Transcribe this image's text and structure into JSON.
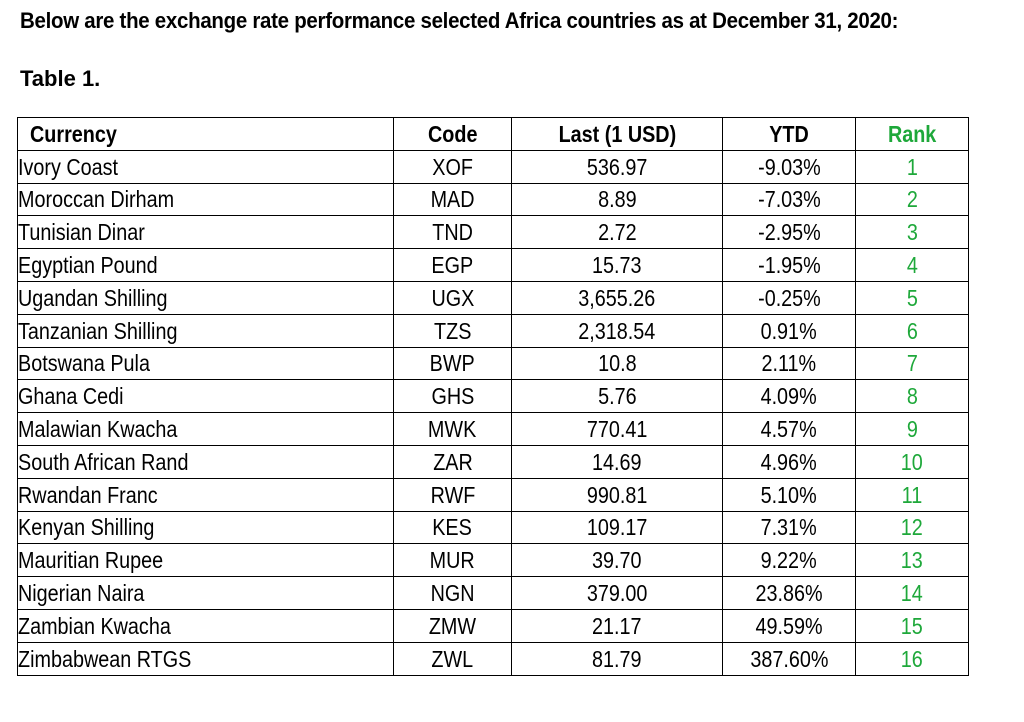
{
  "heading": "Below are the exchange rate performance selected Africa countries as at December 31, 2020:",
  "table_caption": "Table 1.",
  "accent_color": "#1ea83a",
  "columns": {
    "currency": "Currency",
    "code": "Code",
    "last": "Last (1 USD)",
    "ytd": "YTD",
    "rank": "Rank"
  },
  "rows": [
    {
      "currency": "Ivory Coast",
      "code": "XOF",
      "last": "536.97",
      "ytd": "-9.03%",
      "rank": "1"
    },
    {
      "currency": "Moroccan Dirham",
      "code": "MAD",
      "last": "8.89",
      "ytd": "-7.03%",
      "rank": "2"
    },
    {
      "currency": "Tunisian Dinar",
      "code": "TND",
      "last": "2.72",
      "ytd": "-2.95%",
      "rank": "3"
    },
    {
      "currency": "Egyptian Pound",
      "code": "EGP",
      "last": "15.73",
      "ytd": "-1.95%",
      "rank": "4"
    },
    {
      "currency": "Ugandan Shilling",
      "code": "UGX",
      "last": "3,655.26",
      "ytd": "-0.25%",
      "rank": "5"
    },
    {
      "currency": "Tanzanian Shilling",
      "code": "TZS",
      "last": "2,318.54",
      "ytd": "0.91%",
      "rank": "6"
    },
    {
      "currency": "Botswana Pula",
      "code": "BWP",
      "last": "10.8",
      "ytd": "2.11%",
      "rank": "7"
    },
    {
      "currency": "Ghana Cedi",
      "code": "GHS",
      "last": "5.76",
      "ytd": "4.09%",
      "rank": "8"
    },
    {
      "currency": "Malawian Kwacha",
      "code": "MWK",
      "last": "770.41",
      "ytd": "4.57%",
      "rank": "9"
    },
    {
      "currency": "South African Rand",
      "code": "ZAR",
      "last": "14.69",
      "ytd": "4.96%",
      "rank": "10"
    },
    {
      "currency": "Rwandan Franc",
      "code": "RWF",
      "last": "990.81",
      "ytd": "5.10%",
      "rank": "11"
    },
    {
      "currency": "Kenyan Shilling",
      "code": "KES",
      "last": "109.17",
      "ytd": "7.31%",
      "rank": "12"
    },
    {
      "currency": "Mauritian Rupee",
      "code": "MUR",
      "last": "39.70",
      "ytd": "9.22%",
      "rank": "13"
    },
    {
      "currency": "Nigerian Naira",
      "code": "NGN",
      "last": "379.00",
      "ytd": "23.86%",
      "rank": "14"
    },
    {
      "currency": "Zambian Kwacha",
      "code": "ZMW",
      "last": "21.17",
      "ytd": "49.59%",
      "rank": "15"
    },
    {
      "currency": "Zimbabwean RTGS",
      "code": "ZWL",
      "last": "81.79",
      "ytd": "387.60%",
      "rank": "16"
    }
  ]
}
